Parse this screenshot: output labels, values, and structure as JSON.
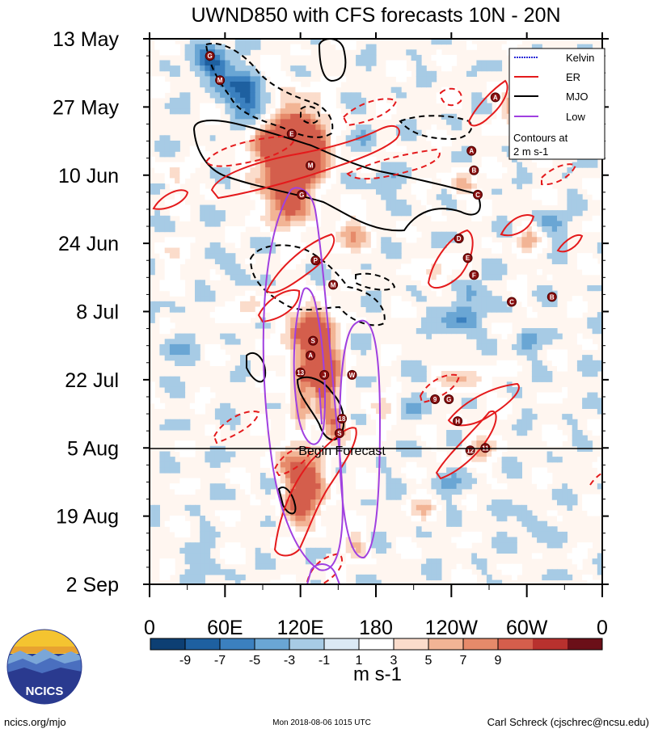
{
  "chart_data": {
    "type": "heatmap",
    "title": "UWND850 with CFS forecasts  10N - 20N",
    "x_tick_labels": [
      "0",
      "60E",
      "120E",
      "180",
      "120W",
      "60W",
      "0"
    ],
    "x_ticks_lon": [
      0,
      60,
      120,
      180,
      240,
      300,
      360
    ],
    "y_tick_labels": [
      "13 May",
      "27 May",
      "10 Jun",
      "24 Jun",
      "8 Jul",
      "22 Jul",
      "5 Aug",
      "19 Aug",
      "2 Sep"
    ],
    "y_ticks_day": [
      0,
      14,
      28,
      42,
      56,
      70,
      84,
      98,
      112
    ],
    "colorbar": {
      "labels": [
        "-9",
        "-7",
        "-5",
        "-3",
        "-1",
        "1",
        "3",
        "5",
        "7",
        "9"
      ],
      "colors": [
        "#0d3f73",
        "#1e60a0",
        "#3b80bf",
        "#6aa6d4",
        "#a7cbe5",
        "#dbe9f5",
        "#ffffff",
        "#fbdccb",
        "#f2b495",
        "#e68a6a",
        "#d45e4c",
        "#b8312e",
        "#6b0f18"
      ],
      "unit": "m s-1"
    },
    "legend": {
      "entries": [
        {
          "name": "Kelvin",
          "color": "#2b2bd6"
        },
        {
          "name": "ER",
          "color": "#e41a1c"
        },
        {
          "name": "MJO",
          "color": "#000000"
        },
        {
          "name": "Low",
          "color": "#a040e0"
        }
      ],
      "note_line1": "Contours at",
      "note_line2": "2 m s-1"
    },
    "forecast_marker": {
      "label": "Begin Forecast",
      "date": "5 Aug"
    },
    "storms": [
      {
        "label": "G",
        "lon": 48,
        "day": 3.5
      },
      {
        "label": "M",
        "lon": 56,
        "day": 8.5
      },
      {
        "label": "A",
        "lon": 275,
        "day": 12
      },
      {
        "label": "E",
        "lon": 113,
        "day": 19.5
      },
      {
        "label": "M",
        "lon": 128,
        "day": 26
      },
      {
        "label": "A",
        "lon": 256,
        "day": 23
      },
      {
        "label": "B",
        "lon": 258,
        "day": 27
      },
      {
        "label": "C",
        "lon": 261,
        "day": 32
      },
      {
        "label": "G",
        "lon": 121,
        "day": 32
      },
      {
        "label": "D",
        "lon": 246,
        "day": 41
      },
      {
        "label": "E",
        "lon": 253,
        "day": 45
      },
      {
        "label": "F",
        "lon": 258,
        "day": 48.5
      },
      {
        "label": "P",
        "lon": 132,
        "day": 45.5
      },
      {
        "label": "M",
        "lon": 146,
        "day": 50.5
      },
      {
        "label": "C",
        "lon": 288,
        "day": 54
      },
      {
        "label": "B",
        "lon": 320,
        "day": 53
      },
      {
        "label": "S",
        "lon": 130,
        "day": 62
      },
      {
        "label": "A",
        "lon": 128,
        "day": 65
      },
      {
        "label": "13",
        "lon": 120,
        "day": 68.5
      },
      {
        "label": "J",
        "lon": 139,
        "day": 69
      },
      {
        "label": "W",
        "lon": 161,
        "day": 69
      },
      {
        "label": "9",
        "lon": 227,
        "day": 74
      },
      {
        "label": "G",
        "lon": 238,
        "day": 74
      },
      {
        "label": "H",
        "lon": 245,
        "day": 78.5
      },
      {
        "label": "18",
        "lon": 153,
        "day": 78
      },
      {
        "label": "S",
        "lon": 151,
        "day": 81
      },
      {
        "label": "12",
        "lon": 255,
        "day": 84.5
      },
      {
        "label": "11",
        "lon": 267,
        "day": 84
      }
    ]
  },
  "footer": {
    "logo_text": "NCICS",
    "website": "ncics.org/mjo",
    "timestamp": "Mon 2018-08-06 1015 UTC",
    "author": "Carl Schreck (cjschrec@ncsu.edu)"
  },
  "colors": {
    "kelvin": "#2b2bd6",
    "er": "#e41a1c",
    "mjo": "#000000",
    "low": "#a040e0"
  }
}
